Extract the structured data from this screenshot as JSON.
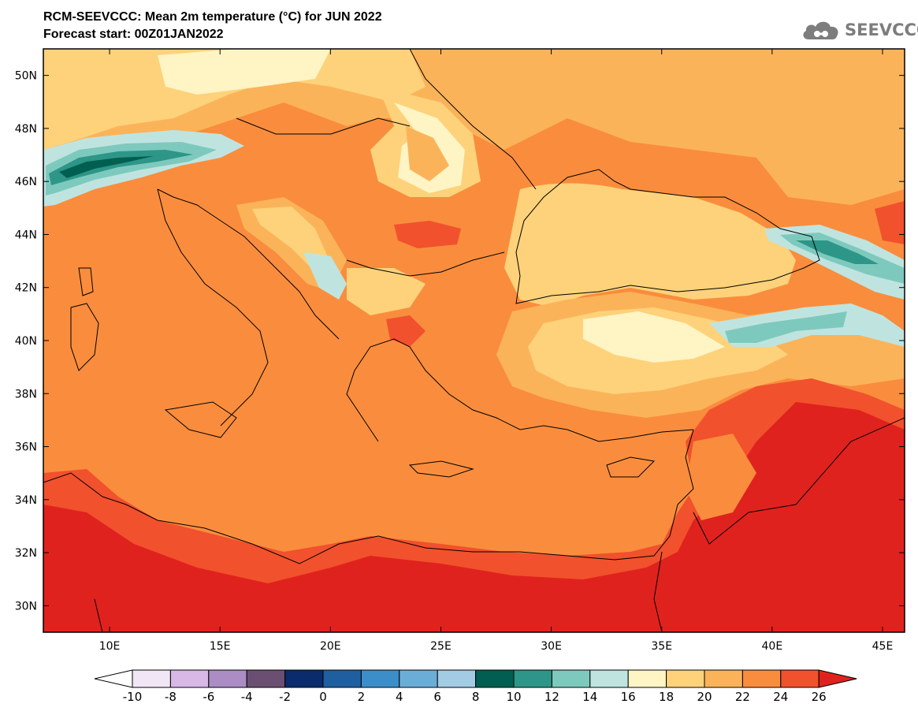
{
  "header": {
    "title_line1": "RCM-SEEVCCC: Mean 2m temperature (°C) for JUN 2022",
    "title_line2": "Forecast start: 00Z01JAN2022"
  },
  "logo": {
    "text": "SEEVCCC",
    "icon": "cloud-icon",
    "color": "#7d7d7d"
  },
  "map": {
    "lon_range": [
      7,
      46
    ],
    "lat_range": [
      29,
      51
    ],
    "lon_ticks": [
      10,
      15,
      20,
      25,
      30,
      35,
      40,
      45
    ],
    "lon_tick_labels": [
      "10E",
      "15E",
      "20E",
      "25E",
      "30E",
      "35E",
      "40E",
      "45E"
    ],
    "lat_ticks": [
      30,
      32,
      34,
      36,
      38,
      40,
      42,
      44,
      46,
      48,
      50
    ],
    "lat_tick_labels": [
      "30N",
      "32N",
      "34N",
      "36N",
      "38N",
      "40N",
      "42N",
      "44N",
      "46N",
      "48N",
      "50N"
    ],
    "sea_value_color": "#f98d3d",
    "frame_color": "#000000"
  },
  "colorbar": {
    "labels": [
      "-10",
      "-8",
      "-6",
      "-4",
      "-2",
      "0",
      "2",
      "4",
      "6",
      "8",
      "10",
      "12",
      "14",
      "16",
      "18",
      "20",
      "22",
      "24",
      "26"
    ],
    "low_arrow_color": "#ffffff",
    "high_arrow_color": "#e0221e",
    "colors": [
      "#f1e6f5",
      "#d8b8e6",
      "#ab8cc4",
      "#6b4f72",
      "#0a2b6c",
      "#1f5fa0",
      "#3c8ec8",
      "#6aaed8",
      "#a2cce4",
      "#005f50",
      "#2d9688",
      "#7ec9bd",
      "#bfe4e0",
      "#fff4c4",
      "#fdd27a",
      "#fbb35a",
      "#f98d3d",
      "#f1512c"
    ]
  }
}
